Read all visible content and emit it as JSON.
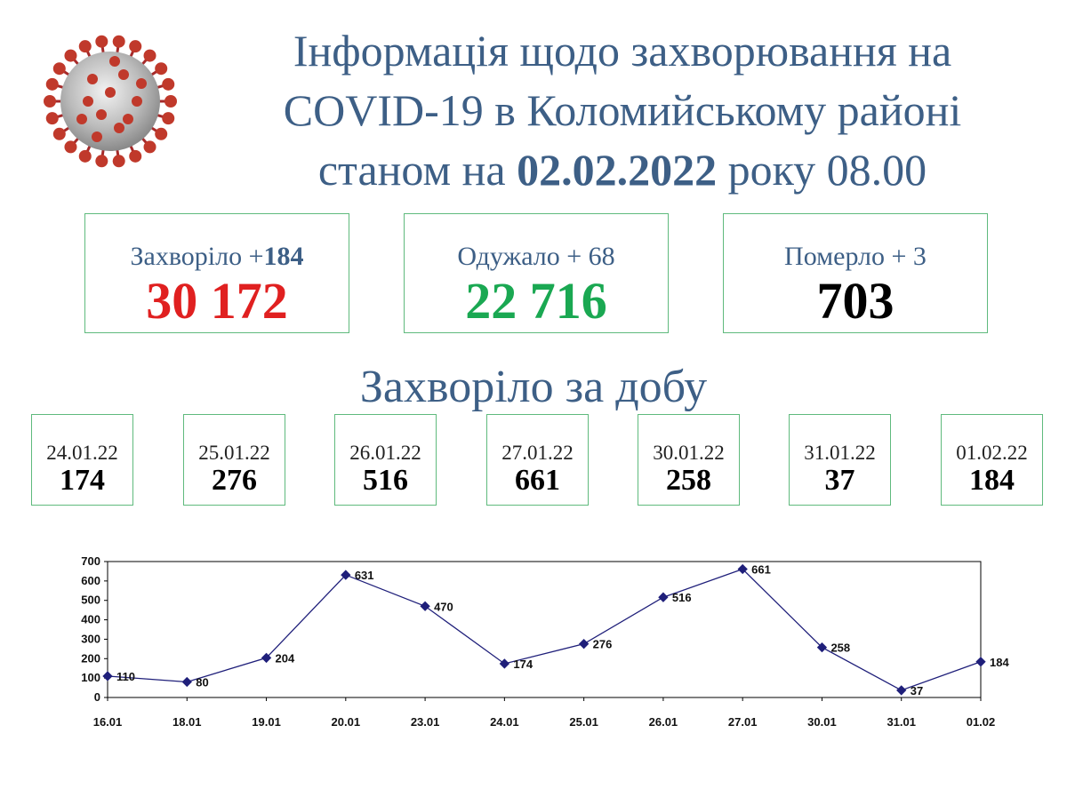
{
  "header": {
    "title_line1": "Інформація щодо захворювання на",
    "title_line2": "COVID-19 в Коломийському районі",
    "title_line3_prefix": "станом на ",
    "title_date": "02.02.2022",
    "title_line3_suffix": " року 08.00"
  },
  "icon": "coronavirus-icon",
  "summary": [
    {
      "label": "Захворіло +",
      "delta": "184",
      "value": "30 172",
      "color": "#e02020"
    },
    {
      "label": "Одужало + 68",
      "delta": "",
      "value": "22 716",
      "color": "#1aa852"
    },
    {
      "label": "Померло + 3",
      "delta": "",
      "value": "703",
      "color": "#000000"
    }
  ],
  "daily_title": "Захворіло за добу",
  "daily": [
    {
      "date": "24.01.22",
      "value": "174"
    },
    {
      "date": "25.01.22",
      "value": "276"
    },
    {
      "date": "26.01.22",
      "value": "516"
    },
    {
      "date": "27.01.22",
      "value": "661"
    },
    {
      "date": "30.01.22",
      "value": "258"
    },
    {
      "date": "31.01.22",
      "value": "37"
    },
    {
      "date": "01.02.22",
      "value": "184"
    }
  ],
  "colors": {
    "title": "#3d5f86",
    "border": "#5fba7d",
    "series": "#1f1f7a"
  },
  "chart_data": {
    "type": "line",
    "categories": [
      "16.01",
      "18.01",
      "19.01",
      "20.01",
      "23.01",
      "24.01",
      "25.01",
      "26.01",
      "27.01",
      "30.01",
      "31.01",
      "01.02"
    ],
    "values": [
      110,
      80,
      204,
      631,
      470,
      174,
      276,
      516,
      661,
      258,
      37,
      184
    ],
    "title": "",
    "xlabel": "",
    "ylabel": "",
    "ylim": [
      0,
      700
    ],
    "yticks": [
      0,
      100,
      200,
      300,
      400,
      500,
      600,
      700
    ],
    "grid": false,
    "data_labels": true
  }
}
